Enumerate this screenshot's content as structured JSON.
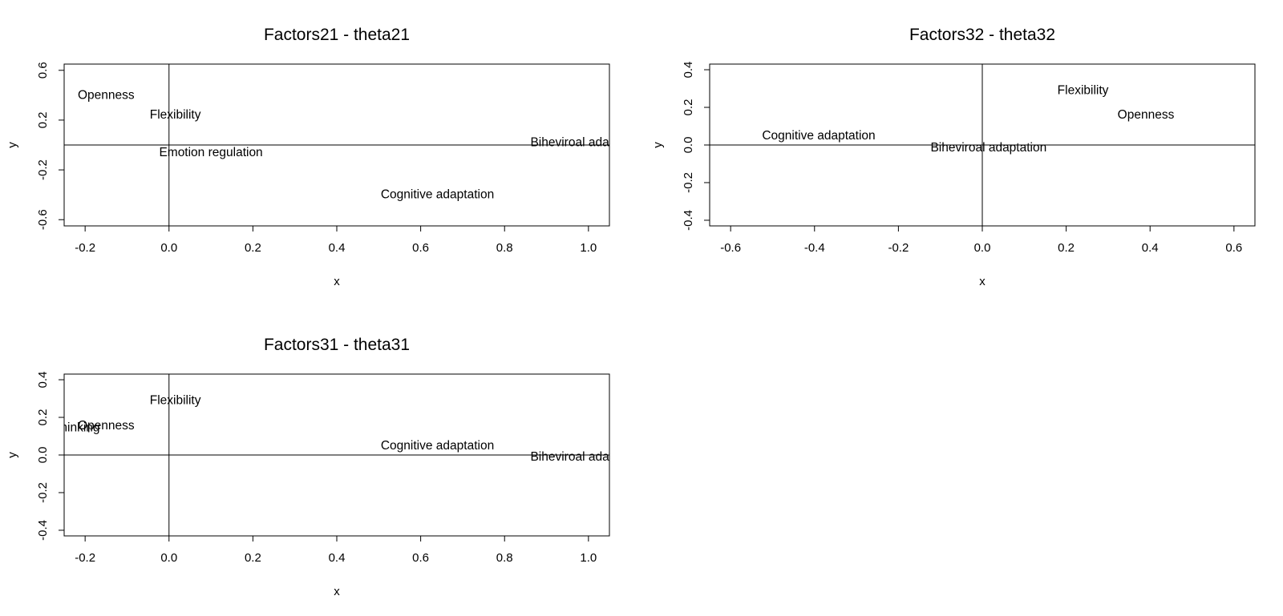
{
  "chart_data": [
    {
      "type": "scatter",
      "title": "Factors21 - theta21",
      "xlabel": "x",
      "ylabel": "y",
      "xlim": [
        -0.25,
        1.05
      ],
      "ylim": [
        -0.65,
        0.65
      ],
      "xticks": [
        "-0.2",
        "0.0",
        "0.2",
        "0.4",
        "0.6",
        "0.8",
        "1.0"
      ],
      "xtick_values": [
        -0.2,
        0,
        0.2,
        0.4,
        0.6,
        0.8,
        1.0
      ],
      "yticks": [
        "-0.6",
        "-0.2",
        "0.2",
        "0.6"
      ],
      "ytick_values": [
        -0.6,
        -0.2,
        0.2,
        0.6
      ],
      "grid": false,
      "reference_lines": {
        "x": 0,
        "y": 0
      },
      "points": [
        {
          "label": "Openness",
          "x": -0.15,
          "y": 0.4
        },
        {
          "label": "Flexibility",
          "x": 0.015,
          "y": 0.24
        },
        {
          "label": "Emotion regulation",
          "x": 0.1,
          "y": -0.06
        },
        {
          "label": "Cognitive adaptation",
          "x": 0.64,
          "y": -0.4
        },
        {
          "label": "Biheviroal adaptation",
          "x": 1.0,
          "y": 0.02
        }
      ]
    },
    {
      "type": "scatter",
      "title": "Factors32 - theta32",
      "xlabel": "x",
      "ylabel": "y",
      "xlim": [
        -0.65,
        0.65
      ],
      "ylim": [
        -0.43,
        0.43
      ],
      "xticks": [
        "-0.6",
        "-0.4",
        "-0.2",
        "0.0",
        "0.2",
        "0.4",
        "0.6"
      ],
      "xtick_values": [
        -0.6,
        -0.4,
        -0.2,
        0,
        0.2,
        0.4,
        0.6
      ],
      "yticks": [
        "-0.4",
        "-0.2",
        "0.0",
        "0.2",
        "0.4"
      ],
      "ytick_values": [
        -0.4,
        -0.2,
        0,
        0.2,
        0.4
      ],
      "grid": false,
      "reference_lines": {
        "x": 0,
        "y": 0
      },
      "points": [
        {
          "label": "Flexibility",
          "x": 0.24,
          "y": 0.29
        },
        {
          "label": "Openness",
          "x": 0.39,
          "y": 0.16
        },
        {
          "label": "Cognitive adaptation",
          "x": -0.39,
          "y": 0.05
        },
        {
          "label": "Biheviroal adaptation",
          "x": 0.015,
          "y": -0.015
        }
      ]
    },
    {
      "type": "scatter",
      "title": "Factors31 - theta31",
      "xlabel": "x",
      "ylabel": "y",
      "xlim": [
        -0.25,
        1.05
      ],
      "ylim": [
        -0.43,
        0.43
      ],
      "xticks": [
        "-0.2",
        "0.0",
        "0.2",
        "0.4",
        "0.6",
        "0.8",
        "1.0"
      ],
      "xtick_values": [
        -0.2,
        0,
        0.2,
        0.4,
        0.6,
        0.8,
        1.0
      ],
      "yticks": [
        "-0.4",
        "-0.2",
        "0.0",
        "0.2",
        "0.4"
      ],
      "ytick_values": [
        -0.4,
        -0.2,
        0,
        0.2,
        0.4
      ],
      "grid": false,
      "reference_lines": {
        "x": 0,
        "y": 0
      },
      "points": [
        {
          "label": "Flexibility",
          "x": 0.015,
          "y": 0.29
        },
        {
          "label": "Critical Thinking",
          "x": -0.27,
          "y": 0.145
        },
        {
          "label": "Openness",
          "x": -0.15,
          "y": 0.155
        },
        {
          "label": "Cognitive adaptation",
          "x": 0.64,
          "y": 0.05
        },
        {
          "label": "Biheviroal adaptation",
          "x": 1.0,
          "y": -0.01
        }
      ]
    }
  ]
}
